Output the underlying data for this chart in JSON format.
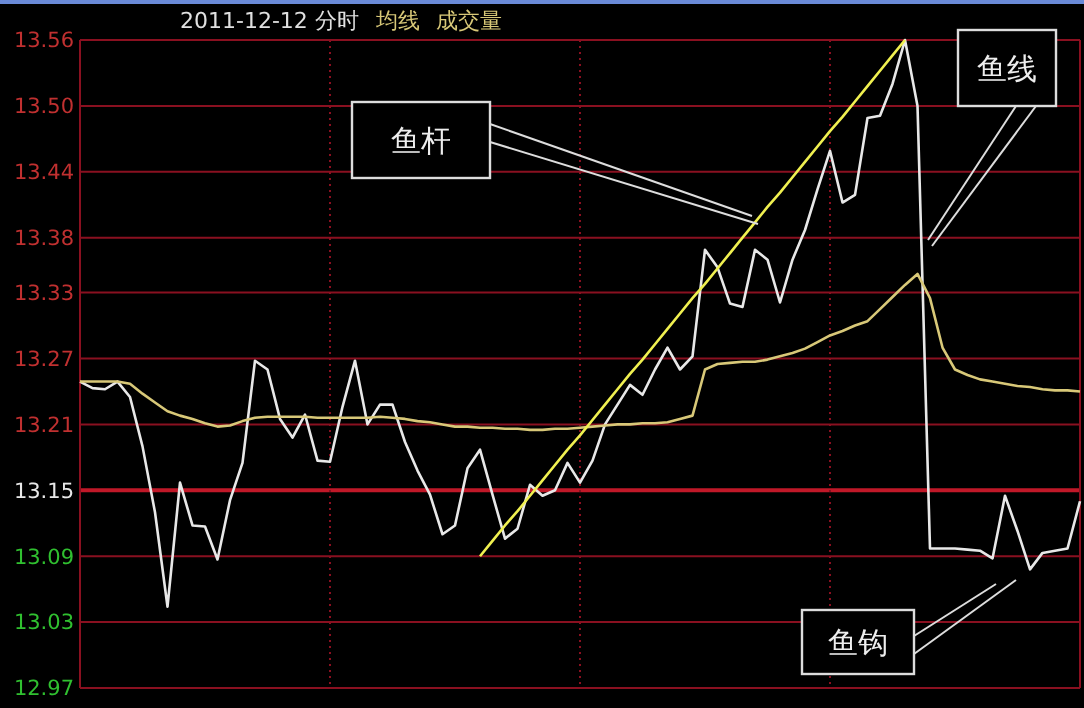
{
  "chart_data": {
    "type": "line",
    "title": "2011-12-12 分时",
    "grid": true,
    "tick_labels": "y",
    "marker": "none",
    "line_style": "solid",
    "categories": [
      null,
      null,
      null,
      null,
      null,
      null,
      null,
      null,
      null,
      null,
      null,
      null,
      null,
      null,
      null,
      null,
      null,
      null,
      null,
      null,
      null,
      null,
      null,
      null,
      null,
      null,
      null,
      null,
      null,
      null,
      null,
      null,
      null,
      null,
      null,
      null,
      null,
      null,
      null,
      null,
      null,
      null,
      null,
      null,
      null,
      null,
      null,
      null,
      null,
      null,
      null,
      null,
      null,
      null,
      null,
      null,
      null,
      null,
      null,
      null,
      null,
      null,
      null,
      null,
      null,
      null,
      null,
      null,
      null,
      null,
      null,
      null,
      null,
      null,
      null,
      null,
      null,
      null,
      null,
      null,
      null
    ],
    "ylim": [
      12.97,
      13.56
    ],
    "yticks": [
      12.97,
      13.03,
      13.09,
      13.15,
      13.21,
      13.27,
      13.33,
      13.38,
      13.44,
      {
        "value": 13.5,
        "label": "13.50"
      },
      13.56
    ],
    "ref_lines": [
      {
        "axis": "y",
        "value": 13.15,
        "color": "#c01828"
      }
    ],
    "series": [
      {
        "color": "#e8e8e8",
        "values": [
          13.249,
          13.243,
          13.242,
          13.249,
          13.235,
          13.19,
          13.13,
          13.044,
          13.157,
          13.118,
          13.117,
          13.087,
          13.141,
          13.175,
          13.268,
          13.26,
          13.215,
          13.198,
          13.219,
          13.177,
          13.176,
          13.226,
          13.268,
          13.21,
          13.228,
          13.228,
          13.194,
          13.168,
          13.146,
          13.11,
          13.118,
          13.17,
          13.187,
          13.146,
          13.106,
          13.115,
          13.155,
          13.145,
          13.15,
          13.175,
          13.157,
          13.177,
          13.21,
          13.228,
          13.246,
          13.237,
          13.26,
          13.28,
          13.26,
          13.272,
          13.369,
          13.353,
          13.32,
          13.317,
          13.369,
          13.36,
          13.321,
          13.36,
          13.387,
          13.424,
          13.459,
          13.412,
          13.419,
          13.489,
          13.491,
          13.52,
          13.56,
          13.5,
          13.097,
          13.097,
          13.097,
          13.096,
          13.095,
          13.088,
          13.145,
          13.113,
          13.078,
          13.093,
          13.095,
          13.097,
          13.14
        ]
      },
      {
        "name": "均线",
        "color": "#d8c878",
        "values": [
          13.249,
          13.249,
          13.249,
          13.249,
          13.247,
          13.238,
          13.23,
          13.222,
          13.218,
          13.215,
          13.211,
          13.208,
          13.209,
          13.213,
          13.216,
          13.217,
          13.217,
          13.217,
          13.217,
          13.216,
          13.216,
          13.216,
          13.216,
          13.216,
          13.217,
          13.216,
          13.215,
          13.213,
          13.212,
          13.21,
          13.208,
          13.208,
          13.207,
          13.207,
          13.206,
          13.206,
          13.205,
          13.205,
          13.206,
          13.206,
          13.207,
          13.208,
          13.209,
          13.21,
          13.21,
          13.211,
          13.211,
          13.212,
          13.215,
          13.218,
          13.26,
          13.265,
          13.266,
          13.267,
          13.267,
          13.269,
          13.272,
          13.275,
          13.279,
          13.285,
          13.291,
          13.295,
          13.3,
          13.304,
          13.315,
          13.326,
          13.337,
          13.347,
          13.325,
          13.28,
          13.26,
          13.255,
          13.251,
          13.249,
          13.247,
          13.245,
          13.244,
          13.242,
          13.241,
          13.241,
          13.24
        ]
      },
      {
        "color": "#f0f050",
        "values": [
          null,
          null,
          null,
          null,
          null,
          null,
          null,
          null,
          null,
          null,
          null,
          null,
          null,
          null,
          null,
          null,
          null,
          null,
          null,
          null,
          null,
          null,
          null,
          null,
          null,
          null,
          null,
          null,
          null,
          null,
          null,
          null,
          13.09,
          13.104,
          13.118,
          13.131,
          13.145,
          13.159,
          13.173,
          13.187,
          13.2,
          13.214,
          13.228,
          13.242,
          13.256,
          13.269,
          13.283,
          13.297,
          13.311,
          13.325,
          13.338,
          13.352,
          13.366,
          13.38,
          13.394,
          13.408,
          13.421,
          13.435,
          13.449,
          13.463,
          13.477,
          13.49,
          13.504,
          13.518,
          13.532,
          13.546,
          13.56,
          null,
          null,
          null,
          null,
          null,
          null,
          null,
          null,
          null,
          null,
          null,
          null,
          null,
          null
        ]
      }
    ],
    "annotations": [
      "成交量",
      "鱼杆",
      "鱼线",
      "鱼钩"
    ]
  }
}
